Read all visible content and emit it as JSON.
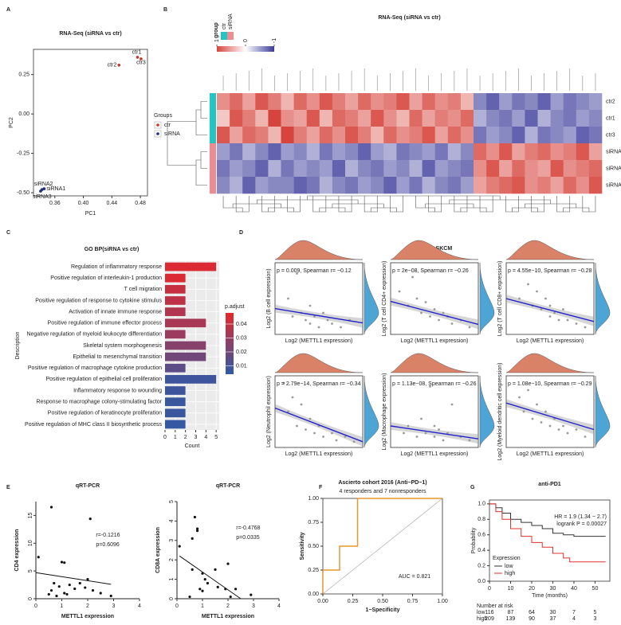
{
  "panel_labels": [
    "A",
    "B",
    "C",
    "D",
    "E",
    "F",
    "G"
  ],
  "chart_data": [
    {
      "type": "scatter",
      "title": "RNA-Seq (siRNA vs ctr)",
      "xlabel": "PC1",
      "ylabel": "PC2",
      "xlim": [
        0.33,
        0.49
      ],
      "xticks": [
        0.36,
        {
          "value": 0.4,
          "label": "0.40"
        },
        0.44,
        0.48
      ],
      "ylim": [
        -0.52,
        0.41
      ],
      "yticks": [
        {
          "value": -0.5,
          "label": "-0.50"
        },
        -0.25,
        {
          "value": 0,
          "label": "0.00"
        },
        0.25
      ],
      "legend_title": "Groups",
      "series": [
        {
          "name": "ctr",
          "color": "#c0392b",
          "x": [
            0.476,
            0.45,
            0.481
          ],
          "y": [
            0.36,
            0.31,
            0.35
          ],
          "labels": [
            "ctr1",
            "ctr2",
            "ctr3"
          ]
        },
        {
          "name": "siRNA",
          "color": "#1f2d86",
          "x": [
            0.345,
            0.342,
            0.34
          ],
          "y": [
            -0.475,
            -0.48,
            -0.49
          ],
          "labels": [
            "siRNA1",
            "siRNA2",
            "siRNA3"
          ]
        }
      ]
    },
    {
      "type": "heatmap",
      "title": "RNA-Seq (siRNA vs ctr)",
      "rows": [
        "ctr2",
        "ctr1",
        "ctr3",
        "siRNA2",
        "siRNA1",
        "siRNA3"
      ],
      "row_groups": [
        "ctr",
        "ctr",
        "ctr",
        "siRNA",
        "siRNA",
        "siRNA"
      ],
      "group_legend": {
        "title": "group",
        "items": [
          {
            "name": "ctr",
            "color": "#22c4c4"
          },
          {
            "name": "siRNA",
            "color": "#f08b8f"
          }
        ]
      },
      "color_scale": {
        "low": "#3b3b9a",
        "mid": "#ffffff",
        "high": "#d6453d",
        "ticks": [
          1,
          0,
          -1
        ]
      },
      "values": [
        [
          0.6,
          0.8,
          0.5,
          0.9,
          0.7,
          0.4,
          0.8,
          0.6,
          0.9,
          0.7,
          0.5,
          0.8,
          0.6,
          0.7,
          0.9,
          0.5,
          0.8,
          0.6,
          0.7,
          0.4,
          -0.6,
          -0.8,
          -0.5,
          -0.7,
          -0.6,
          -0.8,
          -0.5,
          -0.7,
          -0.6,
          -0.5
        ],
        [
          0.3,
          0.9,
          0.7,
          0.4,
          1.0,
          0.6,
          0.5,
          0.9,
          0.4,
          0.8,
          0.7,
          0.5,
          0.9,
          0.6,
          0.4,
          0.8,
          0.5,
          0.7,
          0.6,
          0.8,
          -0.4,
          -0.6,
          -0.7,
          -0.5,
          -0.8,
          -0.4,
          -0.6,
          -0.7,
          -0.5,
          -0.6
        ],
        [
          0.9,
          0.5,
          0.8,
          0.7,
          0.4,
          1.0,
          0.7,
          0.5,
          0.8,
          0.6,
          0.9,
          0.7,
          0.4,
          0.8,
          0.6,
          0.7,
          0.9,
          0.5,
          0.8,
          0.6,
          -0.7,
          -0.5,
          -0.6,
          -0.8,
          -0.4,
          -0.7,
          -0.6,
          -0.5,
          -0.8,
          -0.7
        ],
        [
          -0.5,
          -0.7,
          -0.4,
          -0.6,
          -0.8,
          -0.5,
          -0.6,
          -0.4,
          -0.7,
          -0.5,
          -0.6,
          -0.8,
          -0.5,
          -0.4,
          -0.7,
          -0.6,
          -0.5,
          -0.7,
          -0.4,
          -0.6,
          0.8,
          0.6,
          0.9,
          0.5,
          0.7,
          0.8,
          0.6,
          0.7,
          0.9,
          0.5
        ],
        [
          -0.7,
          -0.5,
          -0.6,
          -0.8,
          -0.4,
          -0.7,
          -0.5,
          -0.6,
          -0.5,
          -0.8,
          -0.4,
          -0.6,
          -0.7,
          -0.5,
          -0.6,
          -0.4,
          -0.8,
          -0.5,
          -0.6,
          -0.7,
          0.6,
          0.9,
          0.5,
          0.8,
          0.6,
          0.5,
          0.9,
          0.6,
          0.7,
          0.8
        ],
        [
          -0.6,
          -0.4,
          -0.8,
          -0.5,
          -0.6,
          -0.6,
          -0.8,
          -0.7,
          -0.4,
          -0.6,
          -0.7,
          -0.5,
          -0.6,
          -0.8,
          -0.5,
          -0.7,
          -0.4,
          -0.6,
          -0.7,
          -0.5,
          0.5,
          0.7,
          0.8,
          0.9,
          0.6,
          0.7,
          0.5,
          0.8,
          0.6,
          0.9
        ]
      ]
    },
    {
      "type": "bar",
      "title": "GO BP(siRNA vs ctr)",
      "xlabel": "Count",
      "ylabel": "Description",
      "categories": [
        "Regulation of inflammatory response",
        "Positive regulation of interleukin-1 production",
        "T cell migration",
        "Positive regulation of response to cytokine stimulus",
        "Activation of innate immune response",
        "Positive regulation of immune effector process",
        "Negative regulation of myeloid leukocyte differentiation",
        "Skeletal system morphogenesis",
        "Epithelial to mesenchymal transition",
        "Positive regulation of macrophage cytokine production",
        "Positive regulation of epithelial cell proliferation",
        "Inflammatory response to wounding",
        "Response to macrophage colony-stimulating factor",
        "Positive regulation of keratinocyte proliferation",
        "Positive regulation of MHC class II biosynthetic process"
      ],
      "values": [
        5,
        2,
        2,
        2,
        2,
        4,
        2,
        4,
        4,
        2,
        5,
        2,
        2,
        2,
        2
      ],
      "p_adjust": [
        0.045,
        0.045,
        0.04,
        0.038,
        0.035,
        0.033,
        0.03,
        0.025,
        0.02,
        0.015,
        0.008,
        0.008,
        0.007,
        0.007,
        0.006
      ],
      "xlim": [
        0,
        5.3
      ],
      "xticks": [
        0,
        1,
        2,
        3,
        4,
        5
      ],
      "color_scale": {
        "title": "p.adjust",
        "low": "#2d5aa8",
        "high": "#e8262a",
        "lim": [
          0.004,
          0.048
        ],
        "ticks": [
          0.01,
          0.02,
          0.03,
          0.04
        ]
      }
    },
    {
      "type": "scatter_grid",
      "title": "TCGA_SKCM",
      "xlabel": "Log2 (METTL1 expression)",
      "xlim": [
        0,
        10
      ],
      "ylim": [
        0,
        10
      ],
      "panels": [
        {
          "ylabel": "Log2 (B cell expression)",
          "annotation": "p = 0.009, Spearman r= −0.12",
          "x": [
            1.5,
            2,
            2.5,
            3,
            3.5,
            4,
            4,
            4.5,
            5,
            5.5,
            6,
            6.5,
            7.5,
            8.5
          ],
          "y": [
            5,
            2.5,
            8.5,
            3,
            2,
            4,
            1.5,
            2.5,
            1,
            3,
            2,
            1.5,
            1,
            2
          ],
          "fit": {
            "x": [
              0,
              10
            ],
            "y": [
              3.6,
              1.6
            ]
          }
        },
        {
          "ylabel": "Log2 (T cell CD4+ expression)",
          "annotation": "p = 2e−08, Spearman r= −0.26",
          "x": [
            1,
            2,
            2.5,
            3,
            3.5,
            4,
            4.5,
            5,
            5.5,
            6,
            6.5,
            7,
            8,
            9
          ],
          "y": [
            6,
            4,
            8,
            5,
            3,
            4.5,
            2.5,
            3.5,
            2,
            3,
            2.5,
            1.5,
            2,
            1
          ],
          "fit": {
            "x": [
              0,
              10
            ],
            "y": [
              4.6,
              1.4
            ]
          }
        },
        {
          "ylabel": "Log2 (T cell CD8+ expression)",
          "annotation": "p = 4.55e−10, Spearman r= −0.28",
          "x": [
            1.5,
            2.5,
            3,
            3.5,
            4,
            4.5,
            5,
            5,
            5.5,
            6,
            6.5,
            7,
            8,
            9
          ],
          "y": [
            5,
            7,
            4,
            6,
            3.5,
            5,
            2.5,
            4,
            3,
            2,
            3.5,
            2,
            1.5,
            1
          ],
          "fit": {
            "x": [
              0,
              10
            ],
            "y": [
              5,
              1.8
            ]
          }
        },
        {
          "ylabel": "Log2 (Neutrophil expression)",
          "annotation": "p = 2.79e−14, Spearman r= −0.34",
          "x": [
            1,
            1.5,
            2,
            2.5,
            3,
            3.5,
            4,
            4.5,
            5,
            5.5,
            6.5,
            7,
            8,
            9
          ],
          "y": [
            9,
            5,
            7,
            3,
            6,
            2.5,
            4,
            2,
            3,
            1.5,
            2,
            1,
            1.5,
            0.8
          ],
          "fit": {
            "x": [
              0,
              10
            ],
            "y": [
              5.5,
              0.8
            ]
          }
        },
        {
          "ylabel": "Log2 (Macrophage expression)",
          "annotation": "p = 1.13e−08, Spearman r= −0.26",
          "x": [
            1.5,
            2,
            3,
            3.5,
            4,
            4.5,
            5,
            5,
            5.5,
            6,
            6.5,
            7,
            8,
            9
          ],
          "y": [
            2,
            3,
            1.5,
            4,
            2,
            8.5,
            1.5,
            3,
            2.5,
            1,
            2,
            6,
            1.5,
            1
          ],
          "fit": {
            "x": [
              0,
              10
            ],
            "y": [
              3,
              1.2
            ]
          }
        },
        {
          "ylabel": "Log2 (Myeloid dendritic cell expression)",
          "annotation": "p = 1.08e−10, Spearman r= −0.29",
          "x": [
            1.5,
            2,
            2.5,
            3,
            3.5,
            4,
            4.5,
            5,
            5.5,
            6,
            6.5,
            7,
            8,
            9
          ],
          "y": [
            7,
            5,
            8,
            4,
            6,
            3.5,
            5,
            3,
            4,
            2.5,
            3,
            2,
            2.5,
            1.5
          ],
          "fit": {
            "x": [
              0,
              10
            ],
            "y": [
              6.2,
              2.5
            ]
          }
        }
      ]
    },
    {
      "type": "scatter",
      "title": "qRT-PCR",
      "xlabel": "METTL1 expression",
      "ylabel": "CD4 expression",
      "xlim": [
        0,
        4
      ],
      "xticks": [
        0,
        1,
        2,
        3,
        4
      ],
      "ylim": [
        0,
        17.5
      ],
      "yticks": [
        0,
        5,
        10,
        15
      ],
      "annotations": [
        "r=-0.1216",
        "p=0.6096"
      ],
      "series": [
        {
          "color": "#111111",
          "x": [
            0.1,
            0.6,
            0.5,
            0.6,
            0.7,
            0.8,
            0.9,
            1.0,
            1.1,
            1.1,
            1.2,
            1.3,
            1.5,
            1.7,
            1.9,
            2.0,
            2.1,
            2.2,
            2.5,
            2.9
          ],
          "y": [
            7.5,
            16.5,
            0.8,
            1.5,
            2.8,
            0.5,
            2.2,
            6.6,
            6.5,
            1.0,
            0.8,
            2.5,
            1.8,
            2.8,
            2.0,
            3.5,
            14.4,
            1.5,
            1.0,
            0.5
          ]
        }
      ],
      "fit": {
        "x": [
          0,
          2.9
        ],
        "y": [
          4.7,
          2.6
        ]
      }
    },
    {
      "type": "scatter",
      "title": "qRT-PCR",
      "xlabel": "METTL1 expression",
      "ylabel": "CD8A expression",
      "xlim": [
        0,
        4
      ],
      "xticks": [
        0,
        1,
        2,
        3,
        4
      ],
      "ylim": [
        0,
        5
      ],
      "yticks": [
        0,
        1,
        2,
        3,
        4,
        5
      ],
      "annotations": [
        "r=-0.4768",
        "p=0.0335"
      ],
      "series": [
        {
          "color": "#111111",
          "x": [
            0.1,
            0.5,
            0.6,
            0.6,
            0.7,
            0.8,
            0.8,
            0.9,
            1.0,
            1.0,
            1.1,
            1.2,
            1.5,
            1.6,
            1.9,
            2.0,
            2.1,
            2.3,
            2.9
          ],
          "y": [
            2.7,
            0.1,
            1.5,
            3.1,
            4.2,
            3.5,
            3.6,
            0.5,
            0.4,
            1.3,
            1.0,
            0.8,
            1.5,
            0.6,
            0.5,
            1.8,
            0.1,
            0.5,
            0.2
          ]
        }
      ],
      "fit": {
        "x": [
          0.1,
          2.5
        ],
        "y": [
          2.2,
          0
        ]
      }
    },
    {
      "type": "line",
      "title": "Ascierto cohort 2016 (Anti−PD−1)",
      "subtitle": "4 responders and 7 nonresponders",
      "xlabel": "1−Specificity",
      "ylabel": "Sensitivity",
      "annotation": "AUC = 0.821",
      "xlim": [
        0,
        1
      ],
      "ylim": [
        0,
        1
      ],
      "xticks": [
        {
          "value": 0,
          "label": "0.00"
        },
        0.25,
        {
          "value": 0.5,
          "label": "0.50"
        },
        0.75,
        {
          "value": 1,
          "label": "1.00"
        }
      ],
      "yticks": [
        {
          "value": 0,
          "label": "0.00"
        },
        0.25,
        {
          "value": 0.5,
          "label": "0.50"
        },
        0.75,
        {
          "value": 1,
          "label": "1.00"
        }
      ],
      "series": [
        {
          "color": "#e8962e",
          "x": [
            0,
            0,
            0.14,
            0.14,
            0.29,
            0.29,
            1
          ],
          "y": [
            0,
            0.25,
            0.25,
            0.5,
            0.5,
            1,
            1
          ]
        }
      ]
    },
    {
      "type": "survival",
      "title": "anti-PD1",
      "xlabel": "Time (months)",
      "ylabel": "Probability",
      "annotations": [
        "HR = 1.9 (1.34 − 2.7)",
        "logrank P = 0.00027"
      ],
      "legend_title": "Expression",
      "xlim": [
        0,
        57
      ],
      "xticks": [
        0,
        10,
        20,
        30,
        40,
        50
      ],
      "ylim": [
        0,
        1.05
      ],
      "yticks": [
        {
          "value": 0,
          "label": "0.0"
        },
        0.2,
        0.4,
        0.6,
        0.8,
        {
          "value": 1,
          "label": "1.0"
        }
      ],
      "series": [
        {
          "name": "low",
          "color": "#333333",
          "x": [
            0,
            3,
            6,
            10,
            15,
            20,
            25,
            30,
            35,
            40,
            45,
            55
          ],
          "y": [
            1,
            0.95,
            0.88,
            0.8,
            0.76,
            0.72,
            0.68,
            0.62,
            0.6,
            0.58,
            0.58,
            0.58
          ]
        },
        {
          "name": "high",
          "color": "#e0312b",
          "x": [
            0,
            3,
            6,
            10,
            15,
            20,
            25,
            30,
            35,
            38,
            45,
            55
          ],
          "y": [
            1,
            0.9,
            0.8,
            0.68,
            0.58,
            0.5,
            0.44,
            0.36,
            0.3,
            0.25,
            0.25,
            0.25
          ]
        }
      ],
      "risk_table": {
        "title": "Number at risk",
        "rows": [
          {
            "name": "low",
            "color": "#333333",
            "values": [
              116,
              87,
              64,
              30,
              7,
              5
            ]
          },
          {
            "name": "high",
            "color": "#e0312b",
            "values": [
              209,
              139,
              90,
              37,
              4,
              3
            ]
          }
        ]
      }
    }
  ]
}
